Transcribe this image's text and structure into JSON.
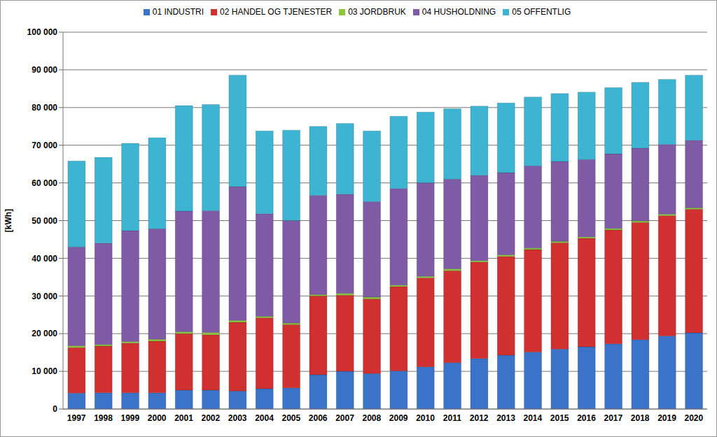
{
  "chart_data": {
    "type": "bar",
    "y_label": "[kWh]",
    "stacked": true,
    "grid": true,
    "legend": "top",
    "categories": [
      "1997",
      "1998",
      "1999",
      "2000",
      "2001",
      "2002",
      "2003",
      "2004",
      "2005",
      "2006",
      "2007",
      "2008",
      "2009",
      "2010",
      "2011",
      "2012",
      "2013",
      "2014",
      "2015",
      "2016",
      "2017",
      "2018",
      "2019",
      "2020"
    ],
    "ylim": [
      0,
      100000
    ],
    "yticks": [
      0,
      {
        "value": 10000,
        "label": "10 000"
      },
      {
        "value": 20000,
        "label": "20 000"
      },
      {
        "value": 30000,
        "label": "30 000"
      },
      {
        "value": 40000,
        "label": "40 000"
      },
      {
        "value": 50000,
        "label": "50 000"
      },
      {
        "value": 60000,
        "label": "60 000"
      },
      {
        "value": 70000,
        "label": "70 000"
      },
      {
        "value": 80000,
        "label": "80 000"
      },
      {
        "value": 90000,
        "label": "90 000"
      },
      {
        "value": 100000,
        "label": "100 000"
      }
    ],
    "series": [
      {
        "name": "01 INDUSTRI",
        "color": "#3b73c8",
        "values": [
          4200,
          4300,
          4300,
          4300,
          5000,
          5000,
          4800,
          5400,
          5600,
          9100,
          10000,
          9400,
          10100,
          11200,
          12300,
          13400,
          14300,
          15100,
          15900,
          16500,
          17300,
          18400,
          19400,
          20200
        ]
      },
      {
        "name": "02 HANDEL OG TJENESTER",
        "color": "#d03030",
        "values": [
          12100,
          12400,
          13200,
          13700,
          15000,
          14700,
          18200,
          18800,
          16800,
          20900,
          20200,
          19800,
          22400,
          23600,
          24400,
          25600,
          26200,
          27200,
          28200,
          28800,
          30200,
          31100,
          31900,
          32800
        ]
      },
      {
        "name": "03 JORDBRUK",
        "color": "#8cc63f",
        "values": [
          500,
          400,
          400,
          500,
          500,
          600,
          500,
          400,
          400,
          400,
          500,
          500,
          400,
          400,
          500,
          400,
          400,
          400,
          400,
          400,
          400,
          400,
          400,
          400
        ]
      },
      {
        "name": "04 HUSHOLDNING",
        "color": "#7f5ba6",
        "values": [
          26200,
          26900,
          29400,
          29300,
          32000,
          32300,
          35500,
          27200,
          27200,
          26300,
          26300,
          25300,
          25600,
          24800,
          23800,
          22600,
          21800,
          21800,
          21200,
          20500,
          19800,
          19300,
          18500,
          17900
        ]
      },
      {
        "name": "05 OFFENTLIG",
        "color": "#3cb4d2",
        "values": [
          22800,
          22800,
          23200,
          24200,
          28000,
          28200,
          29600,
          22000,
          24000,
          18300,
          18800,
          18800,
          19200,
          18800,
          18700,
          18400,
          18500,
          18300,
          18000,
          17900,
          17600,
          17500,
          17300,
          17300
        ]
      }
    ]
  }
}
